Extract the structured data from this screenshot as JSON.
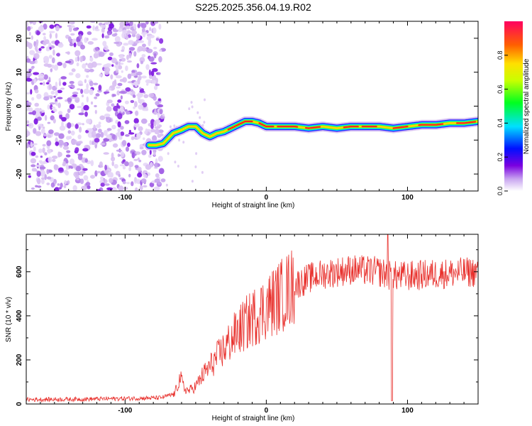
{
  "title": "S225.2025.356.04.19.R02",
  "chart_data": [
    {
      "type": "heatmap",
      "name": "spectrogram",
      "xlabel": "Height of straight line (km)",
      "ylabel": "Frequency (Hz)",
      "xlim": [
        -170,
        150
      ],
      "ylim": [
        -25,
        25
      ],
      "xticks": [
        -100,
        0,
        100
      ],
      "yticks": [
        -20,
        -10,
        0,
        10,
        20
      ],
      "noise_region_x": [
        -170,
        -73
      ],
      "ridge": {
        "x": [
          -83,
          -78,
          -73,
          -66,
          -60,
          -55,
          -50,
          -45,
          -40,
          -35,
          -30,
          -25,
          -20,
          -15,
          -10,
          -5,
          0,
          10,
          20,
          30,
          40,
          50,
          60,
          70,
          80,
          90,
          100,
          110,
          120,
          130,
          140,
          150
        ],
        "freq": [
          -11.5,
          -11.5,
          -11,
          -8,
          -7,
          -6,
          -6,
          -8,
          -9,
          -8,
          -7.5,
          -6.5,
          -5.5,
          -4.5,
          -4.5,
          -5,
          -6,
          -6,
          -6,
          -6.5,
          -6,
          -6.5,
          -6,
          -6,
          -6,
          -6.5,
          -6,
          -5.5,
          -5.5,
          -5,
          -5,
          -4.5
        ]
      },
      "colorbar": {
        "label": "Normalized spectral amplitude",
        "range": [
          0,
          1
        ],
        "ticks": [
          "0.0",
          "0.2",
          "0.4",
          "0.6",
          "0.8"
        ]
      }
    },
    {
      "type": "line",
      "name": "snr",
      "xlabel": "Height of straight line (km)",
      "ylabel": "SNR (10 * v/v)",
      "xlim": [
        -170,
        150
      ],
      "ylim": [
        0,
        770
      ],
      "xticks": [
        -100,
        0,
        100
      ],
      "yticks": [
        0,
        200,
        400,
        600
      ],
      "color": "#e8302c",
      "envelope": {
        "x": [
          -170,
          -130,
          -100,
          -75,
          -65,
          -61,
          -58,
          -55,
          -50,
          -45,
          -40,
          -30,
          -20,
          -10,
          0,
          10,
          20,
          30,
          40,
          60,
          80,
          89,
          100,
          120,
          150
        ],
        "y": [
          20,
          22,
          25,
          28,
          45,
          120,
          70,
          60,
          80,
          130,
          170,
          250,
          330,
          390,
          440,
          490,
          540,
          570,
          590,
          610,
          600,
          580,
          580,
          590,
          600
        ]
      },
      "dip": {
        "x": 89,
        "y": 15
      },
      "spike": {
        "x": 86,
        "y": 770
      }
    }
  ]
}
